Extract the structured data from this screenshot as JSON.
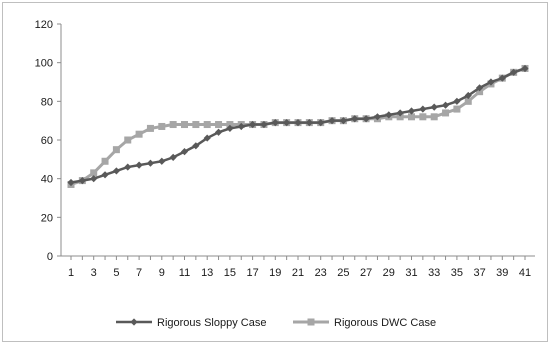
{
  "chart_data": {
    "type": "line",
    "title": "",
    "xlabel": "",
    "ylabel": "",
    "ylim": [
      0,
      120
    ],
    "y_ticks": [
      0,
      20,
      40,
      60,
      80,
      100,
      120
    ],
    "x": [
      1,
      2,
      3,
      4,
      5,
      6,
      7,
      8,
      9,
      10,
      11,
      12,
      13,
      14,
      15,
      16,
      17,
      18,
      19,
      20,
      21,
      22,
      23,
      24,
      25,
      26,
      27,
      28,
      29,
      30,
      31,
      32,
      33,
      34,
      35,
      36,
      37,
      38,
      39,
      40,
      41
    ],
    "x_tick_labels": [
      "1",
      "3",
      "5",
      "7",
      "9",
      "11",
      "13",
      "15",
      "17",
      "19",
      "21",
      "23",
      "25",
      "27",
      "29",
      "31",
      "33",
      "35",
      "37",
      "39",
      "41"
    ],
    "grid": false,
    "legend_position": "bottom",
    "series": [
      {
        "name": "Rigorous Sloppy Case",
        "color": "#595959",
        "marker": "diamond",
        "values": [
          38,
          39,
          40,
          42,
          44,
          46,
          47,
          48,
          49,
          51,
          54,
          57,
          61,
          64,
          66,
          67,
          68,
          68,
          69,
          69,
          69,
          69,
          69,
          70,
          70,
          71,
          71,
          72,
          73,
          74,
          75,
          76,
          77,
          78,
          80,
          83,
          87,
          90,
          92,
          95,
          97
        ]
      },
      {
        "name": "Rigorous DWC Case",
        "color": "#a6a6a6",
        "marker": "square",
        "values": [
          37,
          39,
          43,
          49,
          55,
          60,
          63,
          66,
          67,
          68,
          68,
          68,
          68,
          68,
          68,
          68,
          68,
          68,
          69,
          69,
          69,
          69,
          69,
          70,
          70,
          71,
          71,
          71,
          72,
          72,
          72,
          72,
          72,
          74,
          76,
          80,
          85,
          89,
          92,
          95,
          97
        ]
      }
    ]
  }
}
